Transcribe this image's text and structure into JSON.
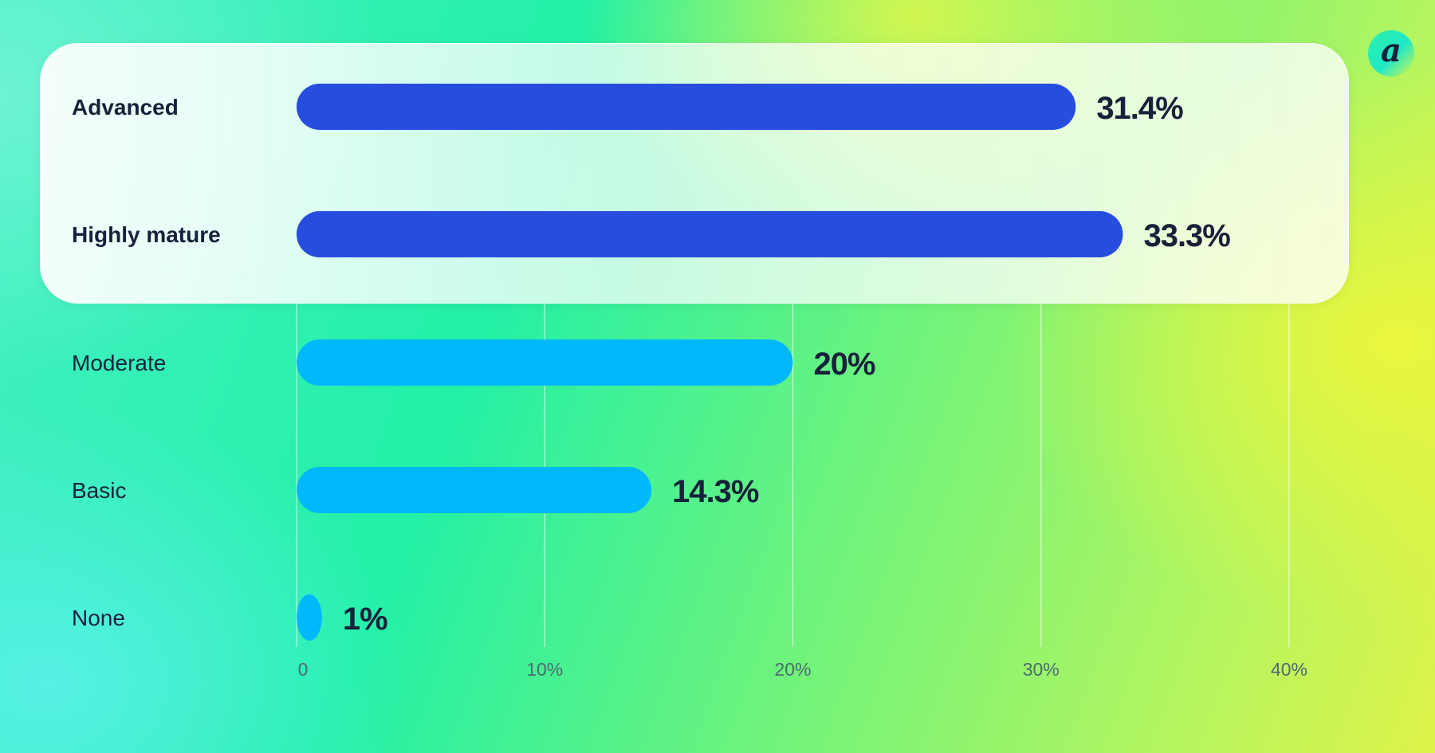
{
  "brand": {
    "logo_letter": "a"
  },
  "colors": {
    "highlight_bar": "#264ddd",
    "normal_bar": "#00b8fb",
    "text": "#17213a",
    "grid": "rgba(255,255,255,0.55)"
  },
  "chart_data": {
    "type": "bar",
    "orientation": "horizontal",
    "categories": [
      "Advanced",
      "Highly mature",
      "Moderate",
      "Basic",
      "None"
    ],
    "values": [
      31.4,
      33.3,
      20,
      14.3,
      1
    ],
    "value_labels": [
      "31.4%",
      "33.3%",
      "20%",
      "14.3%",
      "1%"
    ],
    "highlighted": [
      true,
      true,
      false,
      false,
      false
    ],
    "xlim": [
      0,
      40
    ],
    "x_ticks": [
      0,
      10,
      20,
      30,
      40
    ],
    "x_tick_labels": [
      "0",
      "10%",
      "20%",
      "30%",
      "40%"
    ],
    "grid": true
  }
}
